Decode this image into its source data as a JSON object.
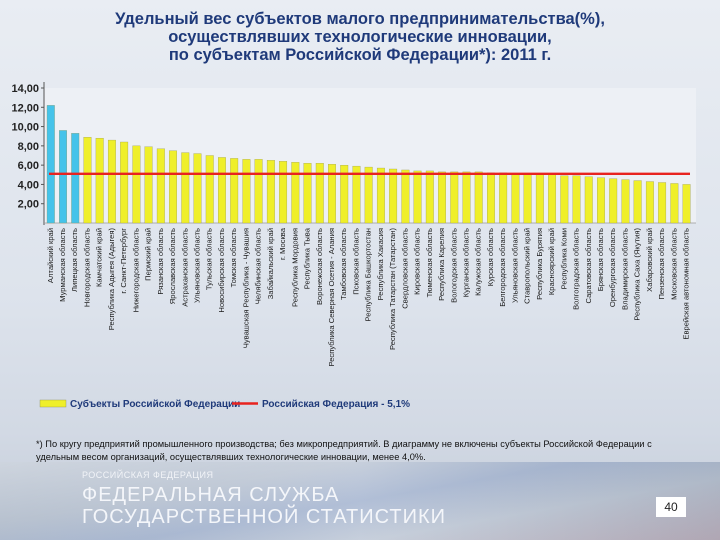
{
  "title": {
    "line1": "Удельный вес субъектов малого предпринимательства(%),",
    "line2": "осуществлявших технологические инновации,",
    "line3": "по субъектам Российской Федерации*): 2011 г."
  },
  "chart_data": {
    "type": "bar",
    "ylim": [
      0,
      14
    ],
    "yticks": [
      "2,00",
      "4,00",
      "6,00",
      "8,00",
      "10,00",
      "12,00",
      "14,00"
    ],
    "average": 5.1,
    "categories": [
      "Алтайский край",
      "Мурманская область",
      "Липецкая область",
      "Новгородская область",
      "Камчатский край",
      "Республика Адыгея (Адыгея)",
      "г. Санкт-Петербург",
      "Нижегородская область",
      "Пермский край",
      "Рязанская область",
      "Ярославская область",
      "Астраханская область",
      "Ульяновская область",
      "Тульская область",
      "Новосибирская область",
      "Томская область",
      "Чувашская Республика - Чувашия",
      "Челябинская область",
      "Забайкальский край",
      "г. Москва",
      "Республика Мордовия",
      "Республика Тыва",
      "Воронежская область",
      "Республика Северная Осетия - Алания",
      "Тамбовская область",
      "Псковская область",
      "Республика Башкортостан",
      "Республика Хакасия",
      "Республика Татарстан (Татарстан)",
      "Свердловская область",
      "Кировская область",
      "Тюменская область",
      "Республика Карелия",
      "Вологодская область",
      "Курганская область",
      "Калужская область",
      "Курская область",
      "Белгородская область",
      "Ульяновская область",
      "Ставропольский край",
      "Республика Бурятия",
      "Красноярский край",
      "Республика Коми",
      "Волгоградская область",
      "Саратовская область",
      "Брянская область",
      "Оренбургская область",
      "Владимирская область",
      "Республика Саха (Якутия)",
      "Хабаровский край",
      "Пензенская область",
      "Московская область",
      "Еврейская автономная область"
    ],
    "values": [
      12.2,
      9.6,
      9.3,
      8.9,
      8.8,
      8.6,
      8.4,
      8.0,
      7.9,
      7.7,
      7.5,
      7.3,
      7.2,
      7.0,
      6.8,
      6.7,
      6.6,
      6.6,
      6.5,
      6.4,
      6.3,
      6.2,
      6.2,
      6.1,
      6.0,
      5.9,
      5.8,
      5.7,
      5.6,
      5.5,
      5.4,
      5.4,
      5.3,
      5.3,
      5.3,
      5.3,
      5.2,
      5.2,
      5.1,
      5.0,
      5.0,
      5.0,
      4.9,
      4.9,
      4.8,
      4.7,
      4.6,
      4.5,
      4.4,
      4.3,
      4.2,
      4.1,
      4.0
    ],
    "highlight_count": 3,
    "colors": {
      "highlight": "#45c3ea",
      "bar": "#efef2a",
      "average_line": "#e8231f"
    },
    "legend": {
      "bar_label": "Субъекты Российской Федерации",
      "line_label": "Российская Федерация - 5,1%"
    }
  },
  "footnote": "*) По кругу предприятий промышленного производства; без микропредприятий. В диаграмму не включены субъекты Российской Федерации с удельным весом организаций, осуществлявших технологические инновации, менее 4,0%.",
  "footer": {
    "country": "РОССИЙСКАЯ ФЕДЕРАЦИЯ",
    "agency_line1": "ФЕДЕРАЛЬНАЯ СЛУЖБА",
    "agency_line2": "ГОСУДАРСТВЕННОЙ СТАТИСТИКИ",
    "page_number": "40"
  }
}
